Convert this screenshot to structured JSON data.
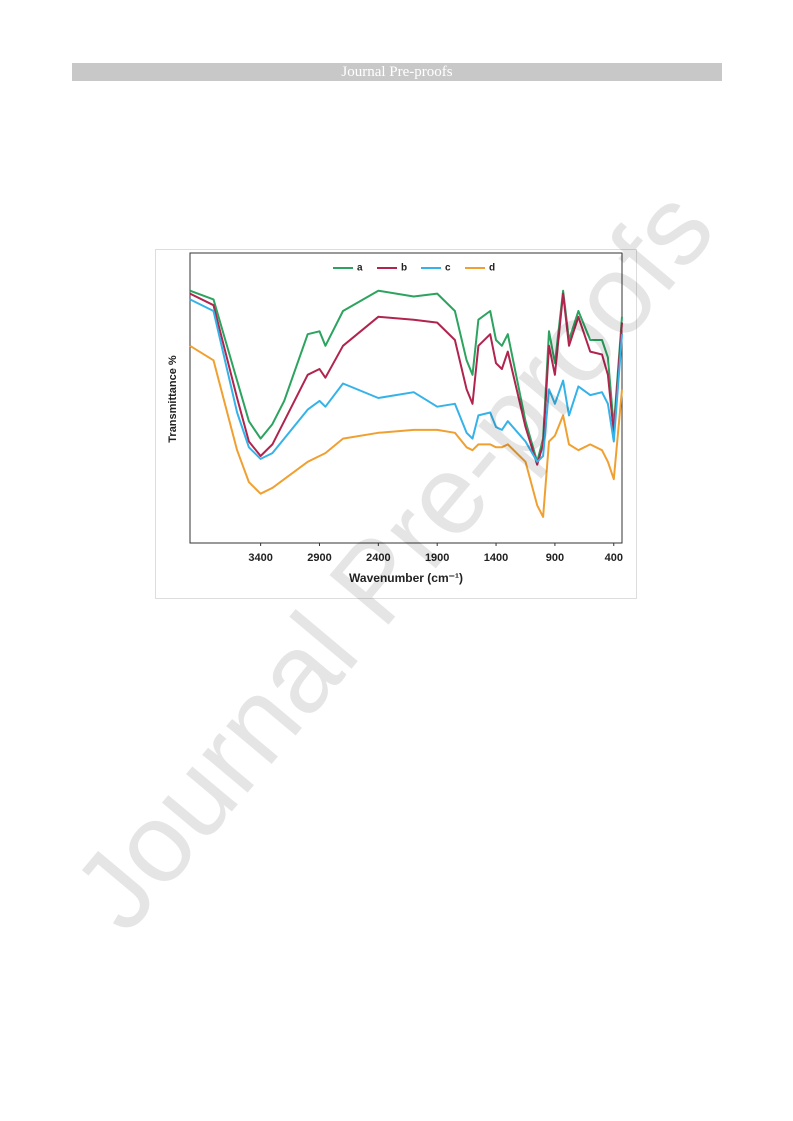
{
  "header": {
    "title": "Journal Pre-proofs"
  },
  "watermark": "Journal Pre-proofs",
  "chart_data": {
    "type": "line",
    "y_label": "Transmittance %",
    "x_label": "Wavenumber (cm⁻¹)",
    "x": [
      4000,
      3800,
      3600,
      3500,
      3400,
      3300,
      3200,
      3000,
      2900,
      2850,
      2700,
      2400,
      2100,
      1900,
      1750,
      1650,
      1600,
      1550,
      1450,
      1400,
      1350,
      1300,
      1150,
      1050,
      1000,
      950,
      900,
      830,
      780,
      700,
      600,
      500,
      450,
      400,
      330
    ],
    "xlim": [
      4000,
      330
    ],
    "xticks": [
      3400,
      2900,
      2400,
      1900,
      1400,
      900,
      400
    ],
    "ylim": [
      0,
      100
    ],
    "legend": "top",
    "series": [
      {
        "name": "a",
        "color": "#2ca35f",
        "values": [
          87,
          84,
          56,
          42,
          36,
          41,
          49,
          72,
          73,
          68,
          80,
          87,
          85,
          86,
          80,
          63,
          58,
          77,
          80,
          70,
          68,
          72,
          42,
          28,
          36,
          73,
          62,
          87,
          70,
          80,
          70,
          70,
          64,
          40,
          78
        ]
      },
      {
        "name": "b",
        "color": "#b0244e",
        "values": [
          86,
          82,
          50,
          35,
          30,
          34,
          42,
          58,
          60,
          57,
          68,
          78,
          77,
          76,
          70,
          53,
          48,
          68,
          72,
          62,
          60,
          66,
          40,
          27,
          34,
          68,
          58,
          86,
          68,
          78,
          66,
          65,
          58,
          38,
          76
        ]
      },
      {
        "name": "c",
        "color": "#35b3e8",
        "values": [
          84,
          80,
          45,
          33,
          29,
          31,
          36,
          46,
          49,
          47,
          55,
          50,
          52,
          47,
          48,
          38,
          36,
          44,
          45,
          40,
          39,
          42,
          35,
          28,
          30,
          53,
          48,
          56,
          44,
          54,
          51,
          52,
          48,
          35,
          72
        ]
      },
      {
        "name": "d",
        "color": "#f0a030",
        "values": [
          68,
          63,
          32,
          21,
          17,
          19,
          22,
          28,
          30,
          31,
          36,
          38,
          39,
          39,
          38,
          33,
          32,
          34,
          34,
          33,
          33,
          34,
          28,
          13,
          9,
          35,
          37,
          44,
          34,
          32,
          34,
          32,
          28,
          22,
          53
        ]
      }
    ]
  }
}
